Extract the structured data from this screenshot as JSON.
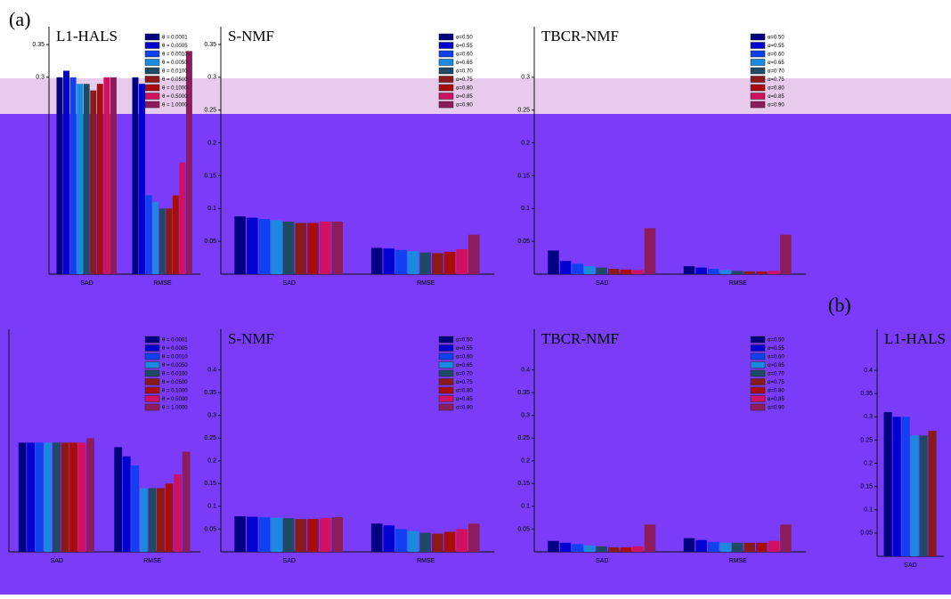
{
  "chart_data": [
    {
      "type": "bar",
      "title": "L1-HALS",
      "annotation": "(a)",
      "categories": [
        "SAD",
        "RMSE"
      ],
      "ylim": [
        0,
        0.35
      ],
      "yticks": [
        0.3,
        0.35
      ],
      "legend": "upper right",
      "series": [
        {
          "name": "θ = 0.0001",
          "color": "#000080",
          "values": [
            0.3,
            0.3
          ]
        },
        {
          "name": "θ = 0.0005",
          "color": "#0000d0",
          "values": [
            0.31,
            0.29
          ]
        },
        {
          "name": "θ = 0.0010",
          "color": "#1040f0",
          "values": [
            0.3,
            0.12
          ]
        },
        {
          "name": "θ = 0.0050",
          "color": "#1a8ae0",
          "values": [
            0.29,
            0.11
          ]
        },
        {
          "name": "θ = 0.0100",
          "color": "#1e4a66",
          "values": [
            0.29,
            0.1
          ]
        },
        {
          "name": "θ = 0.0500",
          "color": "#8a1a1a",
          "values": [
            0.28,
            0.1
          ]
        },
        {
          "name": "θ = 0.1000",
          "color": "#a80c0c",
          "values": [
            0.29,
            0.12
          ]
        },
        {
          "name": "θ = 0.5000",
          "color": "#d01060",
          "values": [
            0.3,
            0.17
          ]
        },
        {
          "name": "θ = 1.0000",
          "color": "#8c1c5c",
          "values": [
            0.3,
            0.34
          ]
        }
      ]
    },
    {
      "type": "bar",
      "title": "S-NMF",
      "categories": [
        "SAD",
        "RMSE"
      ],
      "ylim": [
        0,
        0.35
      ],
      "yticks": [
        0.05,
        0.1,
        0.15,
        0.2,
        0.25,
        0.3,
        0.35
      ],
      "legend": "upper right",
      "series": [
        {
          "name": "α=0.50",
          "color": "#000080",
          "values": [
            0.088,
            0.04
          ]
        },
        {
          "name": "α=0.55",
          "color": "#0000d0",
          "values": [
            0.086,
            0.039
          ]
        },
        {
          "name": "α=0.60",
          "color": "#1040f0",
          "values": [
            0.084,
            0.037
          ]
        },
        {
          "name": "α=0.65",
          "color": "#1a8ae0",
          "values": [
            0.082,
            0.035
          ]
        },
        {
          "name": "α=0.70",
          "color": "#1e4a66",
          "values": [
            0.08,
            0.033
          ]
        },
        {
          "name": "α=0.75",
          "color": "#8a1a1a",
          "values": [
            0.078,
            0.032
          ]
        },
        {
          "name": "α=0.80",
          "color": "#a80c0c",
          "values": [
            0.078,
            0.034
          ]
        },
        {
          "name": "α=0.85",
          "color": "#d01060",
          "values": [
            0.08,
            0.038
          ]
        },
        {
          "name": "α=0.90",
          "color": "#8c1c5c",
          "values": [
            0.08,
            0.06
          ]
        }
      ]
    },
    {
      "type": "bar",
      "title": "TBCR-NMF",
      "categories": [
        "SAD",
        "RMSE"
      ],
      "ylim": [
        0,
        0.35
      ],
      "yticks": [
        0.05,
        0.1,
        0.15,
        0.2,
        0.25,
        0.3
      ],
      "legend": "upper right",
      "series": [
        {
          "name": "α=0.50",
          "color": "#000080",
          "values": [
            0.036,
            0.012
          ]
        },
        {
          "name": "α=0.55",
          "color": "#0000d0",
          "values": [
            0.02,
            0.01
          ]
        },
        {
          "name": "α=0.60",
          "color": "#1040f0",
          "values": [
            0.016,
            0.008
          ]
        },
        {
          "name": "α=0.65",
          "color": "#1a8ae0",
          "values": [
            0.012,
            0.006
          ]
        },
        {
          "name": "α=0.70",
          "color": "#1e4a66",
          "values": [
            0.01,
            0.005
          ]
        },
        {
          "name": "α=0.75",
          "color": "#8a1a1a",
          "values": [
            0.008,
            0.004
          ]
        },
        {
          "name": "α=0.80",
          "color": "#a80c0c",
          "values": [
            0.007,
            0.004
          ]
        },
        {
          "name": "α=0.85",
          "color": "#d01060",
          "values": [
            0.006,
            0.005
          ]
        },
        {
          "name": "α=0.90",
          "color": "#8c1c5c",
          "values": [
            0.07,
            0.06
          ]
        }
      ]
    },
    {
      "type": "bar",
      "categories": [
        "SAD",
        "RMSE"
      ],
      "ylim": [
        0,
        0.45
      ],
      "yticks": [],
      "legend": "upper right",
      "series": [
        {
          "name": "θ = 0.0001",
          "color": "#000080",
          "values": [
            0.24,
            0.23
          ]
        },
        {
          "name": "θ = 0.0005",
          "color": "#0000d0",
          "values": [
            0.24,
            0.21
          ]
        },
        {
          "name": "θ = 0.0010",
          "color": "#1040f0",
          "values": [
            0.24,
            0.19
          ]
        },
        {
          "name": "θ = 0.0050",
          "color": "#1a8ae0",
          "values": [
            0.24,
            0.14
          ]
        },
        {
          "name": "θ = 0.0100",
          "color": "#1e4a66",
          "values": [
            0.24,
            0.14
          ]
        },
        {
          "name": "θ = 0.0500",
          "color": "#8a1a1a",
          "values": [
            0.24,
            0.14
          ]
        },
        {
          "name": "θ = 0.1000",
          "color": "#a80c0c",
          "values": [
            0.24,
            0.15
          ]
        },
        {
          "name": "θ = 0.5000",
          "color": "#d01060",
          "values": [
            0.24,
            0.17
          ]
        },
        {
          "name": "θ = 1.0000",
          "color": "#8c1c5c",
          "values": [
            0.25,
            0.22
          ]
        }
      ]
    },
    {
      "type": "bar",
      "title": "S-NMF",
      "categories": [
        "SAD",
        "RMSE"
      ],
      "ylim": [
        0,
        0.45
      ],
      "yticks": [
        0.05,
        0.1,
        0.15,
        0.2,
        0.25,
        0.3,
        0.35,
        0.4
      ],
      "legend": "upper right",
      "series": [
        {
          "name": "α=0.50",
          "color": "#000080",
          "values": [
            0.078,
            0.062
          ]
        },
        {
          "name": "α=0.55",
          "color": "#0000d0",
          "values": [
            0.077,
            0.058
          ]
        },
        {
          "name": "α=0.60",
          "color": "#1040f0",
          "values": [
            0.076,
            0.05
          ]
        },
        {
          "name": "α=0.65",
          "color": "#1a8ae0",
          "values": [
            0.075,
            0.046
          ]
        },
        {
          "name": "α=0.70",
          "color": "#1e4a66",
          "values": [
            0.074,
            0.042
          ]
        },
        {
          "name": "α=0.75",
          "color": "#8a1a1a",
          "values": [
            0.072,
            0.04
          ]
        },
        {
          "name": "α=0.80",
          "color": "#a80c0c",
          "values": [
            0.072,
            0.044
          ]
        },
        {
          "name": "α=0.85",
          "color": "#d01060",
          "values": [
            0.074,
            0.05
          ]
        },
        {
          "name": "α=0.90",
          "color": "#8c1c5c",
          "values": [
            0.076,
            0.062
          ]
        }
      ]
    },
    {
      "type": "bar",
      "title": "TBCR-NMF",
      "categories": [
        "SAD",
        "RMSE"
      ],
      "ylim": [
        0,
        0.45
      ],
      "yticks": [
        0.05,
        0.1,
        0.15,
        0.2,
        0.25,
        0.3,
        0.35,
        0.4
      ],
      "legend": "upper right",
      "series": [
        {
          "name": "α=0.50",
          "color": "#000080",
          "values": [
            0.024,
            0.03
          ]
        },
        {
          "name": "α=0.55",
          "color": "#0000d0",
          "values": [
            0.02,
            0.026
          ]
        },
        {
          "name": "α=0.60",
          "color": "#1040f0",
          "values": [
            0.017,
            0.022
          ]
        },
        {
          "name": "α=0.65",
          "color": "#1a8ae0",
          "values": [
            0.014,
            0.02
          ]
        },
        {
          "name": "α=0.70",
          "color": "#1e4a66",
          "values": [
            0.012,
            0.02
          ]
        },
        {
          "name": "α=0.75",
          "color": "#8a1a1a",
          "values": [
            0.01,
            0.02
          ]
        },
        {
          "name": "α=0.80",
          "color": "#a80c0c",
          "values": [
            0.01,
            0.02
          ]
        },
        {
          "name": "α=0.85",
          "color": "#d01060",
          "values": [
            0.012,
            0.024
          ]
        },
        {
          "name": "α=0.90",
          "color": "#8c1c5c",
          "values": [
            0.06,
            0.06
          ]
        }
      ]
    },
    {
      "type": "bar",
      "title": "L1-HALS",
      "annotation": "(b)",
      "categories": [
        "SAD"
      ],
      "ylim": [
        0,
        0.45
      ],
      "yticks": [
        0.05,
        0.1,
        0.15,
        0.2,
        0.25,
        0.3,
        0.35,
        0.4
      ],
      "series": [
        {
          "name": "θ = 0.0001",
          "color": "#000080",
          "values": [
            0.31
          ]
        },
        {
          "name": "θ = 0.0005",
          "color": "#0000d0",
          "values": [
            0.3
          ]
        },
        {
          "name": "θ = 0.0010",
          "color": "#1040f0",
          "values": [
            0.3
          ]
        },
        {
          "name": "θ = 0.0050",
          "color": "#1a8ae0",
          "values": [
            0.26
          ]
        },
        {
          "name": "θ = 0.0100",
          "color": "#1e4a66",
          "values": [
            0.26
          ]
        },
        {
          "name": "θ = 0.0500",
          "color": "#8a1a1a",
          "values": [
            0.27
          ]
        }
      ]
    }
  ]
}
